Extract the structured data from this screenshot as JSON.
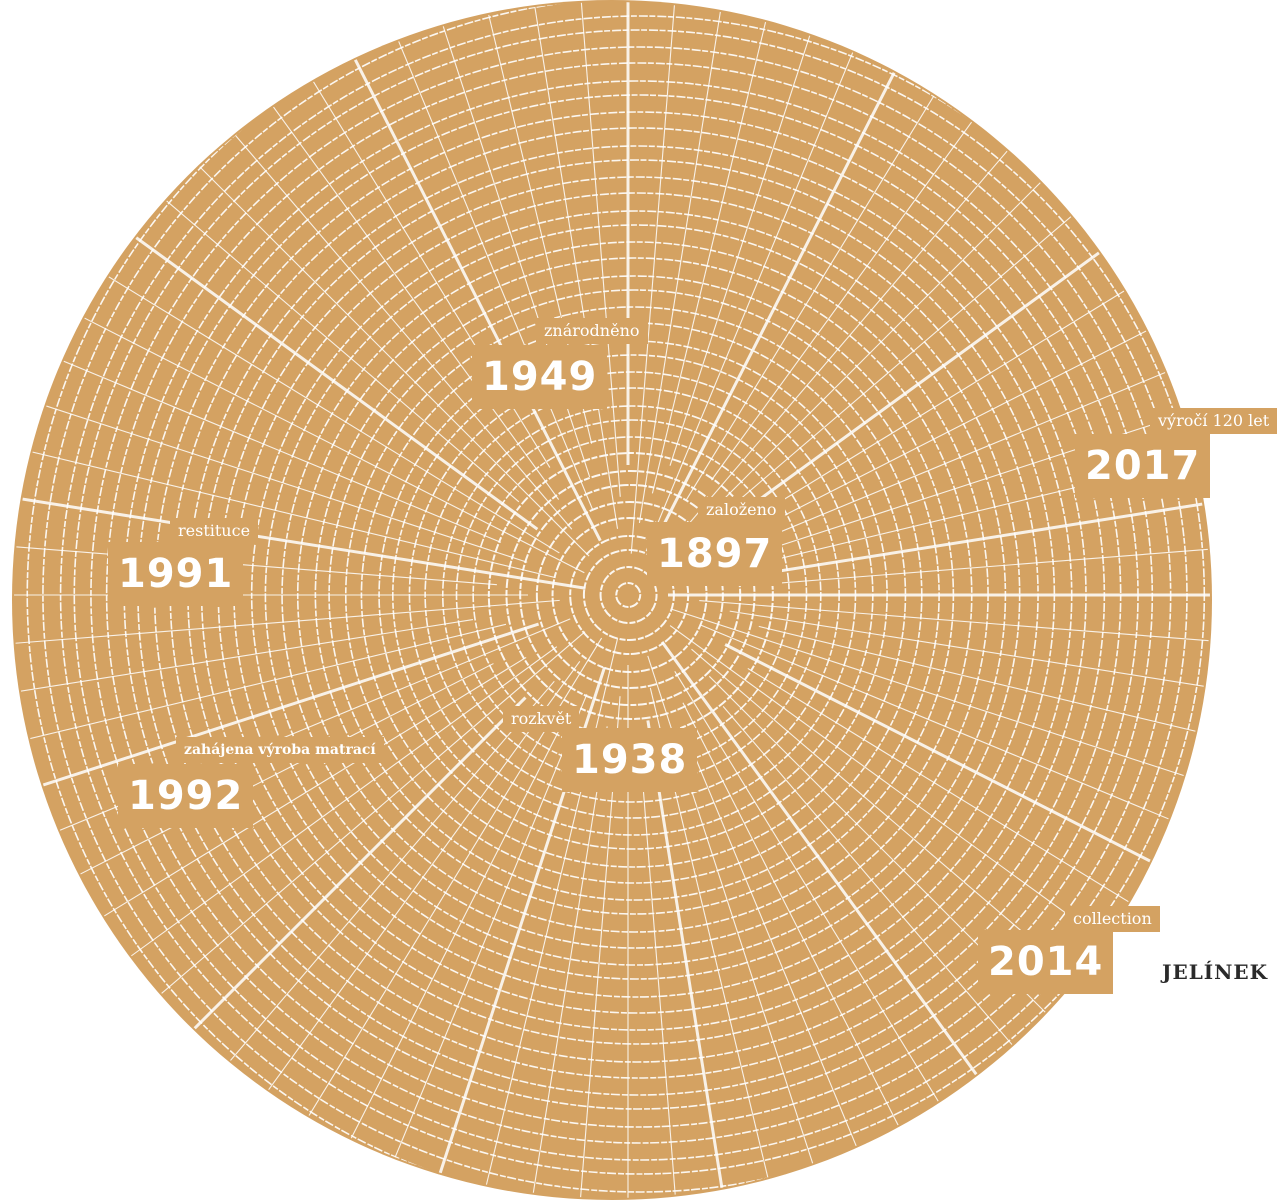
{
  "milestones": [
    {
      "label": "znárodněno",
      "year": "1949"
    },
    {
      "label": "výročí 120 let",
      "year": "2017"
    },
    {
      "label": "založeno",
      "year": "1897"
    },
    {
      "label": "restituce",
      "year": "1991"
    },
    {
      "label": "rozkvět",
      "year": "1938"
    },
    {
      "label": "zahájena výroba matrací",
      "year": "1992"
    },
    {
      "label": "collection",
      "year": "2014"
    }
  ],
  "brand": "JELÍNEK"
}
